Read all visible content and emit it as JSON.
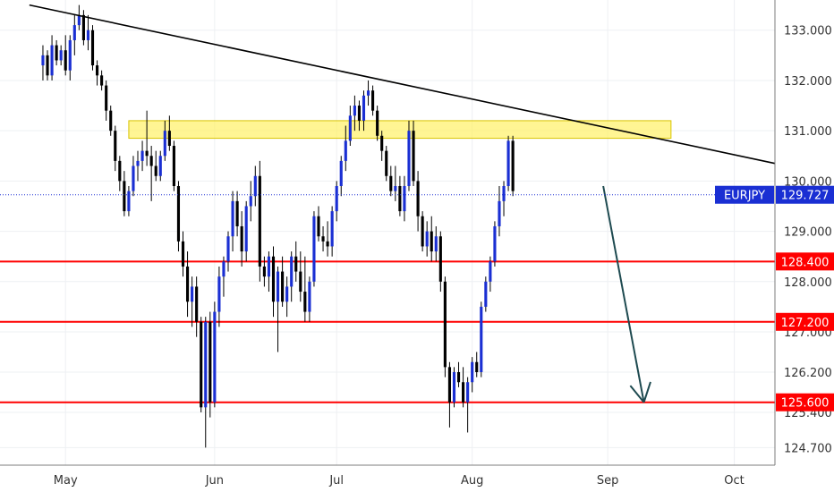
{
  "chart_data": {
    "type": "candlestick",
    "symbol": "EURJPY",
    "current_price": "129.727",
    "y_axis": {
      "ylim": [
        124.35,
        133.6
      ],
      "ticks": [
        "133.000",
        "132.000",
        "131.000",
        "130.000",
        "129.000",
        "128.000",
        "127.000",
        "126.200",
        "125.400",
        "124.700"
      ],
      "tick_values": [
        133.0,
        132.0,
        131.0,
        130.0,
        129.0,
        128.0,
        127.0,
        126.2,
        125.4,
        124.7
      ]
    },
    "x_axis": {
      "labels": [
        "May",
        "Jun",
        "Jul",
        "Aug",
        "Sep",
        "Oct"
      ],
      "label_index": [
        5,
        38,
        65,
        95,
        125,
        153
      ],
      "index_range": [
        -9.5,
        162
      ]
    },
    "levels": [
      {
        "label": "128.400",
        "value": 128.4,
        "color": "#ff0000"
      },
      {
        "label": "127.200",
        "value": 127.2,
        "color": "#ff0000"
      },
      {
        "label": "125.600",
        "value": 125.6,
        "color": "#ff0000"
      }
    ],
    "zone": {
      "from_index": 19,
      "to_index": 139,
      "low": 130.85,
      "high": 131.2,
      "color": "#ffef5a"
    },
    "trendline": {
      "start": [
        -3,
        133.5
      ],
      "end": [
        162,
        130.35
      ],
      "color": "#000000"
    },
    "projection_arrow": {
      "start": [
        124,
        129.9
      ],
      "end": [
        133,
        125.6
      ],
      "color": "#1e4a50"
    },
    "candles": [
      [
        132.3,
        132.7,
        132.0,
        132.5
      ],
      [
        132.5,
        132.6,
        132.0,
        132.1
      ],
      [
        132.1,
        132.9,
        132.0,
        132.7
      ],
      [
        132.7,
        132.8,
        132.3,
        132.4
      ],
      [
        132.4,
        132.7,
        132.3,
        132.6
      ],
      [
        132.6,
        132.9,
        132.1,
        132.2
      ],
      [
        132.2,
        132.9,
        132.0,
        132.8
      ],
      [
        132.8,
        133.3,
        132.5,
        133.1
      ],
      [
        133.1,
        133.5,
        133.0,
        133.3
      ],
      [
        133.3,
        133.4,
        132.7,
        132.8
      ],
      [
        132.8,
        133.3,
        132.6,
        133.0
      ],
      [
        133.0,
        133.1,
        132.2,
        132.3
      ],
      [
        132.3,
        132.4,
        131.9,
        132.1
      ],
      [
        132.1,
        132.2,
        131.8,
        131.9
      ],
      [
        131.9,
        132.0,
        131.2,
        131.4
      ],
      [
        131.4,
        131.5,
        130.9,
        131.0
      ],
      [
        131.0,
        131.1,
        130.2,
        130.4
      ],
      [
        130.4,
        130.5,
        129.8,
        130.0
      ],
      [
        130.0,
        130.2,
        129.3,
        129.4
      ],
      [
        129.4,
        129.9,
        129.3,
        129.8
      ],
      [
        129.8,
        130.5,
        129.7,
        130.3
      ],
      [
        130.3,
        130.6,
        130.0,
        130.4
      ],
      [
        130.4,
        130.8,
        130.2,
        130.6
      ],
      [
        130.6,
        131.4,
        130.3,
        130.5
      ],
      [
        130.5,
        130.7,
        129.6,
        130.3
      ],
      [
        130.3,
        130.6,
        130.0,
        130.1
      ],
      [
        130.1,
        130.6,
        130.0,
        130.5
      ],
      [
        130.5,
        131.2,
        130.4,
        131.0
      ],
      [
        131.0,
        131.3,
        130.6,
        130.7
      ],
      [
        130.7,
        130.8,
        129.8,
        129.9
      ],
      [
        129.9,
        130.0,
        128.6,
        128.8
      ],
      [
        128.8,
        129.0,
        128.1,
        128.3
      ],
      [
        128.3,
        128.6,
        127.3,
        127.6
      ],
      [
        127.6,
        128.1,
        127.1,
        127.9
      ],
      [
        127.9,
        128.1,
        126.9,
        127.2
      ],
      [
        127.2,
        127.3,
        125.4,
        125.5
      ],
      [
        125.5,
        127.3,
        124.7,
        127.2
      ],
      [
        127.2,
        127.4,
        125.3,
        125.6
      ],
      [
        125.6,
        127.6,
        125.5,
        127.4
      ],
      [
        127.4,
        128.3,
        127.1,
        128.1
      ],
      [
        128.1,
        128.5,
        127.7,
        128.4
      ],
      [
        128.4,
        129.0,
        128.2,
        128.9
      ],
      [
        128.9,
        129.8,
        128.6,
        129.6
      ],
      [
        129.6,
        129.8,
        128.9,
        129.1
      ],
      [
        129.1,
        129.4,
        128.3,
        128.6
      ],
      [
        128.6,
        129.6,
        128.4,
        129.5
      ],
      [
        129.5,
        130.0,
        129.2,
        129.7
      ],
      [
        129.7,
        130.3,
        129.5,
        130.1
      ],
      [
        130.1,
        130.4,
        128.0,
        128.3
      ],
      [
        128.3,
        128.5,
        127.9,
        128.1
      ],
      [
        128.1,
        128.6,
        127.8,
        128.5
      ],
      [
        128.5,
        128.7,
        127.3,
        127.6
      ],
      [
        127.6,
        128.3,
        126.6,
        128.2
      ],
      [
        128.2,
        128.5,
        127.5,
        127.6
      ],
      [
        127.6,
        128.1,
        127.3,
        127.9
      ],
      [
        127.9,
        128.6,
        127.6,
        128.5
      ],
      [
        128.5,
        128.8,
        128.0,
        128.2
      ],
      [
        128.2,
        128.6,
        127.6,
        127.8
      ],
      [
        127.8,
        128.5,
        127.2,
        127.4
      ],
      [
        127.4,
        128.1,
        127.2,
        128.0
      ],
      [
        128.0,
        129.4,
        127.9,
        129.3
      ],
      [
        129.3,
        129.5,
        128.8,
        128.9
      ],
      [
        128.9,
        129.1,
        128.6,
        128.8
      ],
      [
        128.8,
        129.2,
        128.5,
        128.7
      ],
      [
        128.7,
        129.5,
        128.5,
        129.4
      ],
      [
        129.4,
        130.0,
        129.2,
        129.9
      ],
      [
        129.9,
        130.5,
        129.7,
        130.4
      ],
      [
        130.4,
        131.1,
        130.2,
        130.8
      ],
      [
        130.8,
        131.5,
        130.7,
        131.3
      ],
      [
        131.3,
        131.7,
        131.0,
        131.5
      ],
      [
        131.5,
        131.6,
        131.0,
        131.2
      ],
      [
        131.2,
        131.8,
        131.0,
        131.7
      ],
      [
        131.7,
        132.0,
        131.5,
        131.8
      ],
      [
        131.8,
        131.9,
        131.3,
        131.4
      ],
      [
        131.4,
        131.5,
        130.8,
        130.9
      ],
      [
        130.9,
        131.0,
        130.4,
        130.6
      ],
      [
        130.6,
        130.7,
        130.0,
        130.1
      ],
      [
        130.1,
        130.3,
        129.7,
        129.8
      ],
      [
        129.8,
        130.3,
        129.6,
        129.9
      ],
      [
        129.9,
        130.1,
        129.3,
        129.4
      ],
      [
        129.4,
        130.1,
        129.2,
        129.9
      ],
      [
        129.9,
        131.2,
        129.8,
        131.0
      ],
      [
        131.0,
        131.2,
        129.9,
        130.0
      ],
      [
        130.0,
        130.2,
        129.0,
        129.3
      ],
      [
        129.3,
        129.4,
        128.6,
        128.7
      ],
      [
        128.7,
        129.2,
        128.5,
        129.0
      ],
      [
        129.0,
        129.3,
        128.4,
        128.6
      ],
      [
        128.6,
        129.1,
        128.4,
        128.9
      ],
      [
        128.9,
        129.0,
        127.8,
        128.0
      ],
      [
        128.0,
        128.1,
        126.1,
        126.3
      ],
      [
        126.3,
        126.4,
        125.1,
        125.6
      ],
      [
        125.6,
        126.3,
        125.5,
        126.2
      ],
      [
        126.2,
        126.4,
        125.9,
        126.0
      ],
      [
        126.0,
        126.3,
        125.5,
        125.6
      ],
      [
        125.6,
        126.1,
        125.0,
        126.0
      ],
      [
        126.0,
        126.5,
        125.8,
        126.4
      ],
      [
        126.4,
        126.6,
        126.1,
        126.2
      ],
      [
        126.2,
        127.6,
        126.1,
        127.5
      ],
      [
        127.5,
        128.1,
        127.4,
        128.0
      ],
      [
        128.0,
        128.5,
        127.8,
        128.4
      ],
      [
        128.4,
        129.2,
        128.3,
        129.1
      ],
      [
        129.1,
        129.9,
        128.9,
        129.6
      ],
      [
        129.6,
        130.0,
        129.3,
        129.9
      ],
      [
        129.9,
        130.9,
        129.8,
        130.8
      ],
      [
        130.8,
        130.9,
        129.7,
        129.8
      ]
    ]
  }
}
